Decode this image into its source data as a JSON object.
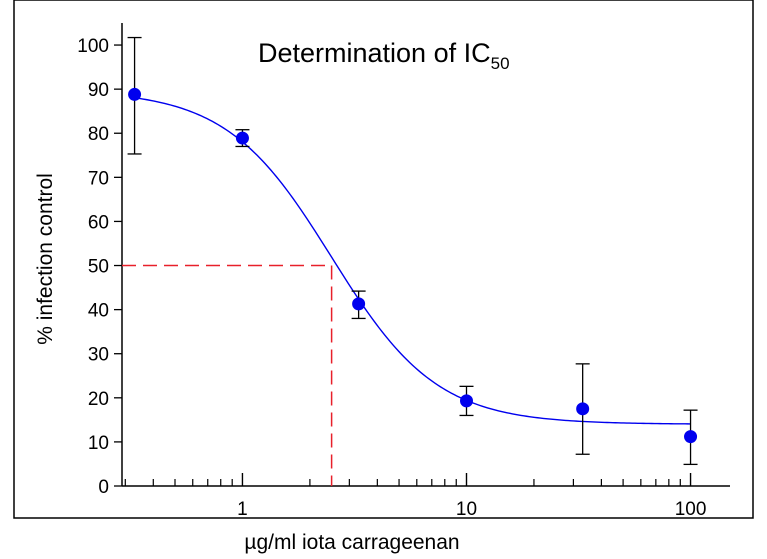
{
  "chart_data": {
    "type": "scatter",
    "title": "Determination of IC",
    "title_subscript": "50",
    "xlabel": "µg/ml  iota carrageenan",
    "ylabel": "% infection control",
    "x_scale": "log",
    "xlim": [
      0.29,
      150
    ],
    "ylim": [
      0,
      105
    ],
    "x_ticks": [
      1,
      10,
      100
    ],
    "x_tick_labels": [
      "1",
      "10",
      "100"
    ],
    "y_ticks": [
      0,
      10,
      20,
      30,
      40,
      50,
      60,
      70,
      80,
      90,
      100
    ],
    "y_tick_labels": [
      "0",
      "10",
      "20",
      "30",
      "40",
      "50",
      "60",
      "70",
      "80",
      "90",
      "100"
    ],
    "grid": false,
    "series": [
      {
        "color": "#0000ee",
        "x": [
          0.33,
          1,
          3.3,
          10,
          33,
          100
        ],
        "y": [
          88.8,
          78.9,
          41.3,
          19.3,
          17.5,
          11.2
        ],
        "err_upper": [
          101.7,
          80.8,
          44.2,
          22.6,
          27.7,
          17.2
        ],
        "err_lower": [
          75.3,
          77.0,
          38.0,
          16.0,
          7.2,
          4.9
        ]
      }
    ],
    "fit_curve": {
      "color": "#0000ee",
      "model": "4PL",
      "top": 89.8,
      "bottom": 14.0,
      "ic50": 2.5,
      "hill": 1.85
    },
    "ic50_marker": {
      "color": "#e8202a",
      "x": 2.5,
      "y": 50
    }
  }
}
